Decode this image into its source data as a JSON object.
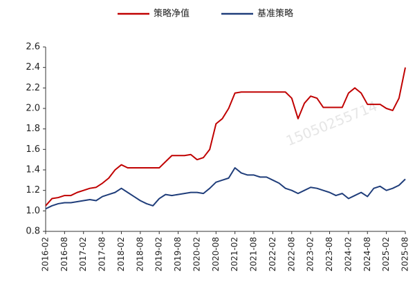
{
  "chart_data": {
    "type": "line",
    "x": [
      "2016-02",
      null,
      null,
      "2016-08",
      null,
      null,
      "2017-02",
      null,
      null,
      "2017-08",
      null,
      null,
      "2018-02",
      null,
      null,
      "2018-08",
      null,
      null,
      "2019-02",
      null,
      null,
      "2019-08",
      null,
      null,
      "2020-02",
      null,
      null,
      "2020-08",
      null,
      null,
      "2021-02",
      null,
      null,
      "2021-08",
      null,
      null,
      "2022-02",
      null,
      null,
      "2022-08",
      null,
      null,
      "2023-02",
      null,
      null,
      "2023-08",
      null,
      null,
      "2024-02",
      null,
      null,
      "2024-08",
      null,
      null,
      "2025-02",
      null,
      null,
      "2025-08"
    ],
    "series": [
      {
        "name": "策略净值",
        "color": "#c00000",
        "values": [
          1.05,
          1.12,
          1.13,
          1.15,
          1.15,
          1.18,
          1.2,
          1.22,
          1.23,
          1.27,
          1.32,
          1.4,
          1.45,
          1.42,
          1.42,
          1.42,
          1.42,
          1.42,
          1.42,
          1.48,
          1.54,
          1.54,
          1.54,
          1.55,
          1.5,
          1.52,
          1.6,
          1.85,
          1.9,
          2.0,
          2.15,
          2.16,
          2.16,
          2.16,
          2.16,
          2.16,
          2.16,
          2.16,
          2.16,
          2.1,
          1.9,
          2.05,
          2.12,
          2.1,
          2.01,
          2.01,
          2.01,
          2.01,
          2.15,
          2.2,
          2.15,
          2.04,
          2.04,
          2.04,
          2.0,
          1.98,
          2.1,
          2.4
        ]
      },
      {
        "name": "基准策略",
        "color": "#1f3d7a",
        "values": [
          1.02,
          1.05,
          1.07,
          1.08,
          1.08,
          1.09,
          1.1,
          1.11,
          1.1,
          1.14,
          1.16,
          1.18,
          1.22,
          1.18,
          1.14,
          1.1,
          1.07,
          1.05,
          1.12,
          1.16,
          1.15,
          1.16,
          1.17,
          1.18,
          1.18,
          1.17,
          1.22,
          1.28,
          1.3,
          1.32,
          1.42,
          1.37,
          1.35,
          1.35,
          1.33,
          1.33,
          1.3,
          1.27,
          1.22,
          1.2,
          1.17,
          1.2,
          1.23,
          1.22,
          1.2,
          1.18,
          1.15,
          1.17,
          1.12,
          1.15,
          1.18,
          1.14,
          1.22,
          1.24,
          1.2,
          1.22,
          1.25,
          1.31
        ]
      }
    ],
    "ylim": [
      0.8,
      2.6
    ],
    "yticks": [
      0.8,
      {
        "value": 1.0,
        "label": "1.0"
      },
      1.2,
      1.4,
      1.6,
      1.8,
      {
        "value": 2.0,
        "label": "2.0"
      },
      2.2,
      2.4,
      2.6
    ],
    "grid": false,
    "legend": "top",
    "watermark": "15050255714"
  }
}
